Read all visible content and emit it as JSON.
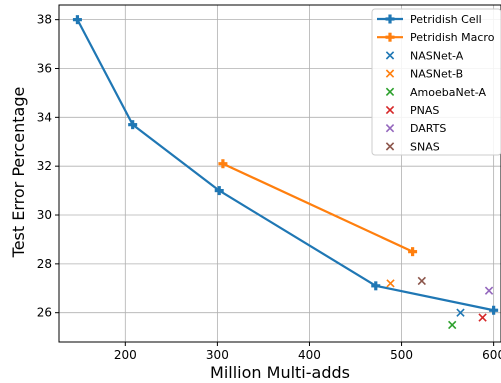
{
  "chart_data": {
    "type": "line",
    "xlabel": "Million Multi-adds",
    "ylabel": "Test Error Percentage",
    "xlim": [
      128,
      608
    ],
    "ylim": [
      24.8,
      38.6
    ],
    "xticks": [
      200,
      300,
      400,
      500,
      600
    ],
    "yticks": [
      26,
      28,
      30,
      32,
      34,
      36,
      38
    ],
    "grid": true,
    "legend_position": "top-right",
    "lines": [
      {
        "name": "Petridish Cell",
        "color": "#1f77b4",
        "x": [
          148,
          208,
          302,
          472,
          600
        ],
        "y": [
          38.0,
          33.7,
          31.0,
          27.1,
          26.1
        ]
      },
      {
        "name": "Petridish Macro",
        "color": "#ff7f0e",
        "x": [
          306,
          512
        ],
        "y": [
          32.1,
          28.5
        ]
      }
    ],
    "points": [
      {
        "name": "NASNet-A",
        "color": "#1f77b4",
        "x": 564,
        "y": 26.0
      },
      {
        "name": "NASNet-B",
        "color": "#ff7f0e",
        "x": 488,
        "y": 27.2
      },
      {
        "name": "AmoebaNet-A",
        "color": "#2ca02c",
        "x": 555,
        "y": 25.5
      },
      {
        "name": "PNAS",
        "color": "#d62728",
        "x": 588,
        "y": 25.8
      },
      {
        "name": "DARTS",
        "color": "#9467bd",
        "x": 595,
        "y": 26.9
      },
      {
        "name": "SNAS",
        "color": "#8c564b",
        "x": 522,
        "y": 27.3
      }
    ]
  }
}
